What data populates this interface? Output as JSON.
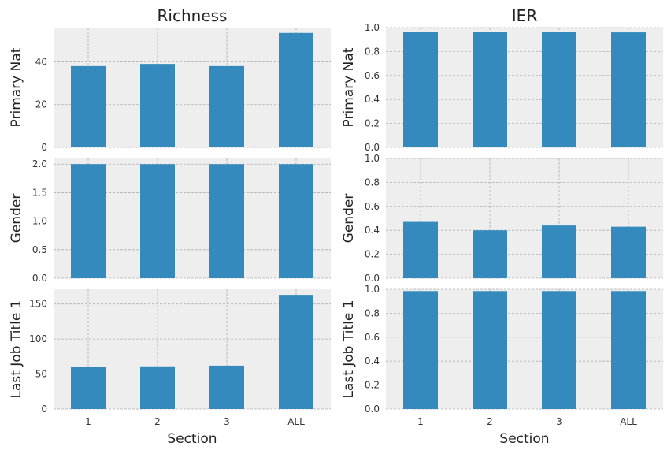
{
  "columns": [
    {
      "title": "Richness"
    },
    {
      "title": "IER"
    }
  ],
  "xlabel": "Section",
  "categories": [
    "1",
    "2",
    "3",
    "ALL"
  ],
  "colors": {
    "bar": "#348abd",
    "panel_bg": "#eeeeee",
    "grid": "#b0b0b0"
  },
  "chart_data": [
    {
      "type": "bar",
      "title": "Richness",
      "ylabel": "Primary Nat",
      "xlabel": "",
      "categories": [
        "1",
        "2",
        "3",
        "ALL"
      ],
      "values": [
        38,
        39,
        38,
        53.5
      ],
      "ylim": [
        0,
        56
      ],
      "yticks": [
        0,
        20,
        40
      ],
      "ytick_labels": [
        "0",
        "20",
        "40"
      ],
      "grid": true
    },
    {
      "type": "bar",
      "title": "IER",
      "ylabel": "Primary Nat",
      "xlabel": "",
      "categories": [
        "1",
        "2",
        "3",
        "ALL"
      ],
      "values": [
        0.965,
        0.965,
        0.965,
        0.96
      ],
      "ylim": [
        0,
        1.0
      ],
      "yticks": [
        0,
        0.2,
        0.4,
        0.6,
        0.8,
        1.0
      ],
      "ytick_labels": [
        "0.0",
        "0.2",
        "0.4",
        "0.6",
        "0.8",
        "1.0"
      ],
      "grid": true
    },
    {
      "type": "bar",
      "title": "",
      "ylabel": "Gender",
      "xlabel": "",
      "categories": [
        "1",
        "2",
        "3",
        "ALL"
      ],
      "values": [
        2.0,
        2.0,
        2.0,
        2.0
      ],
      "ylim": [
        0,
        2.1
      ],
      "yticks": [
        0,
        0.5,
        1.0,
        1.5,
        2.0
      ],
      "ytick_labels": [
        "0.0",
        "0.5",
        "1.0",
        "1.5",
        "2.0"
      ],
      "grid": true
    },
    {
      "type": "bar",
      "title": "",
      "ylabel": "Gender",
      "xlabel": "",
      "categories": [
        "1",
        "2",
        "3",
        "ALL"
      ],
      "values": [
        0.47,
        0.4,
        0.44,
        0.43
      ],
      "ylim": [
        0,
        1.0
      ],
      "yticks": [
        0,
        0.2,
        0.4,
        0.6,
        0.8,
        1.0
      ],
      "ytick_labels": [
        "0.0",
        "0.2",
        "0.4",
        "0.6",
        "0.8",
        "1.0"
      ],
      "grid": true
    },
    {
      "type": "bar",
      "title": "",
      "ylabel": "Last Job Title 1",
      "xlabel": "Section",
      "categories": [
        "1",
        "2",
        "3",
        "ALL"
      ],
      "values": [
        60,
        61,
        62,
        163
      ],
      "ylim": [
        0,
        171
      ],
      "yticks": [
        0,
        50,
        100,
        150
      ],
      "ytick_labels": [
        "0",
        "50",
        "100",
        "150"
      ],
      "grid": true
    },
    {
      "type": "bar",
      "title": "",
      "ylabel": "Last Job Title 1",
      "xlabel": "Section",
      "categories": [
        "1",
        "2",
        "3",
        "ALL"
      ],
      "values": [
        0.985,
        0.985,
        0.985,
        0.985
      ],
      "ylim": [
        0,
        1.0
      ],
      "yticks": [
        0,
        0.2,
        0.4,
        0.6,
        0.8,
        1.0
      ],
      "ytick_labels": [
        "0.0",
        "0.2",
        "0.4",
        "0.6",
        "0.8",
        "1.0"
      ],
      "grid": true
    }
  ]
}
